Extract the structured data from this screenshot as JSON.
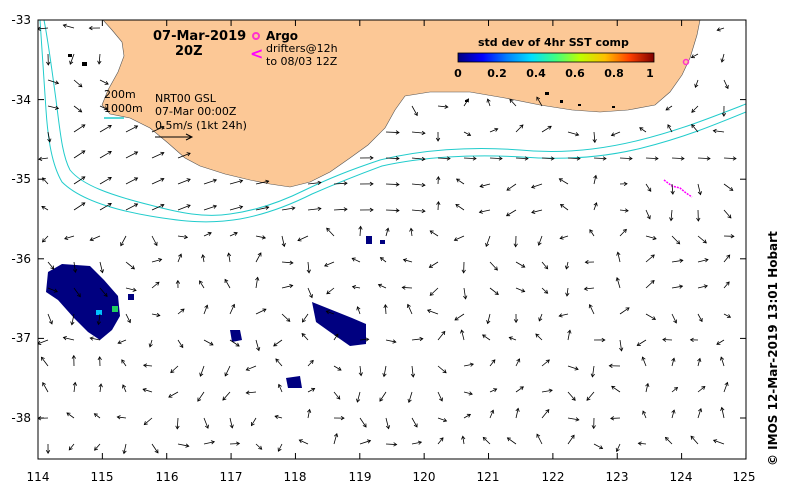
{
  "header": {
    "date": "07-Mar-2019",
    "hour": "20Z"
  },
  "legend": {
    "argo_label": "Argo",
    "drifters_label": "drifters@12h",
    "drifters_sub": "to 08/03 12Z",
    "argo_color": "#ff33cc",
    "drifter_color": "#ff00ff",
    "isobath_200": "200m",
    "isobath_1000": "1000m",
    "isobath_color": "#22cccc",
    "product": "NRT00 GSL",
    "product_time": "07-Mar 00:00Z",
    "scale_arrow": "0.5m/s (1kt 24h)"
  },
  "colorbar": {
    "title": "std dev of 4hr SST comp",
    "tick_labels": [
      "0",
      "0.2",
      "0.4",
      "0.6",
      "0.8",
      "1"
    ],
    "stops": [
      "#000080",
      "#0000ff",
      "#0080ff",
      "#00e0ff",
      "#40ff80",
      "#c0ff00",
      "#ffc000",
      "#ff4000",
      "#800000"
    ]
  },
  "axes": {
    "lon_ticks": [
      "114",
      "115",
      "116",
      "117",
      "118",
      "119",
      "120",
      "121",
      "122",
      "123",
      "124",
      "125"
    ],
    "lat_ticks": [
      "-33",
      "-34",
      "-35",
      "-36",
      "-37",
      "-38"
    ],
    "land_color": "#fcc896",
    "sst_patch_color": "#000080"
  },
  "credit": "©  IMOS 12-Mar-2019 13:01 Hobart"
}
